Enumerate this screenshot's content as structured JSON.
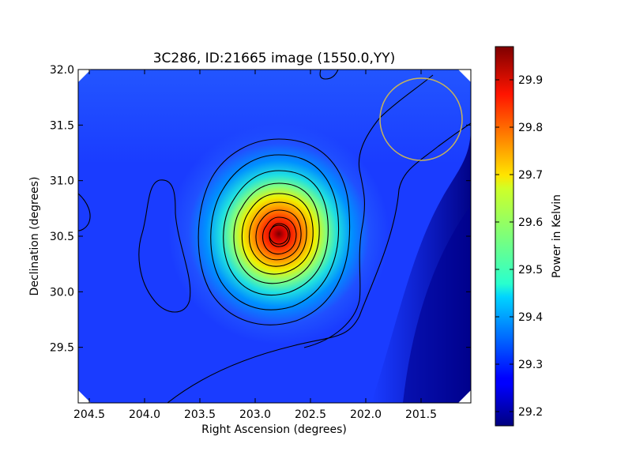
{
  "chart_data": {
    "type": "heatmap",
    "title": "3C286, ID:21665 image (1550.0,YY)",
    "xlabel": "Right Ascension (degrees)",
    "ylabel": "Declination (degrees)",
    "xlim": [
      204.6,
      201.05
    ],
    "ylim": [
      29.0,
      32.0
    ],
    "x_inverted": true,
    "x_ticks": [
      204.5,
      204.0,
      203.5,
      203.0,
      202.5,
      202.0,
      201.5
    ],
    "x_tick_labels": [
      "204.5",
      "204.0",
      "203.5",
      "203.0",
      "202.5",
      "202.0",
      "201.5"
    ],
    "y_ticks": [
      29.5,
      30.0,
      30.5,
      31.0,
      31.5,
      32.0
    ],
    "y_tick_labels": [
      "29.5",
      "30.0",
      "30.5",
      "31.0",
      "31.5",
      "32.0"
    ],
    "colormap": "jet",
    "colorbar": {
      "label": "Power in Kelvin",
      "min": 29.17,
      "max": 29.97,
      "ticks": [
        29.2,
        29.3,
        29.4,
        29.5,
        29.6,
        29.7,
        29.8,
        29.9
      ],
      "tick_labels": [
        "29.2",
        "29.3",
        "29.4",
        "29.5",
        "29.6",
        "29.7",
        "29.8",
        "29.9"
      ]
    },
    "peak": {
      "ra": 202.78,
      "dec": 30.52,
      "value": 29.97
    },
    "background_level": 29.27,
    "contours": "black contour lines around source peak",
    "beam_circle": {
      "ra": 201.5,
      "dec": 31.56,
      "color": "#c8b45a"
    }
  }
}
